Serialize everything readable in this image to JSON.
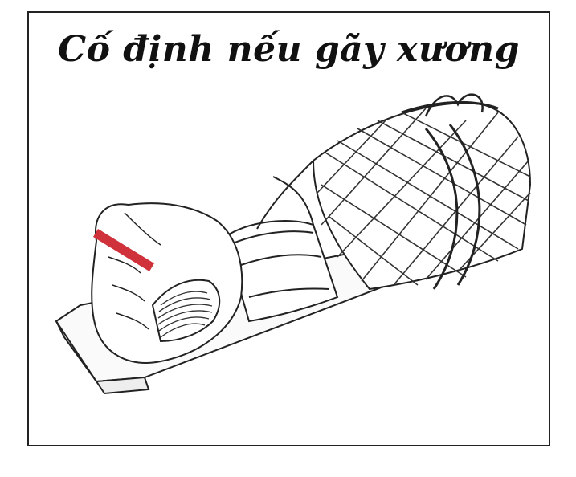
{
  "figure": {
    "title": "Cố định nếu gãy xương",
    "illustration_icon": "splinted-forearm-icon",
    "colors": {
      "border": "#222222",
      "ink": "#222222",
      "bandage_marker": "#d0323c",
      "background": "#ffffff"
    }
  }
}
